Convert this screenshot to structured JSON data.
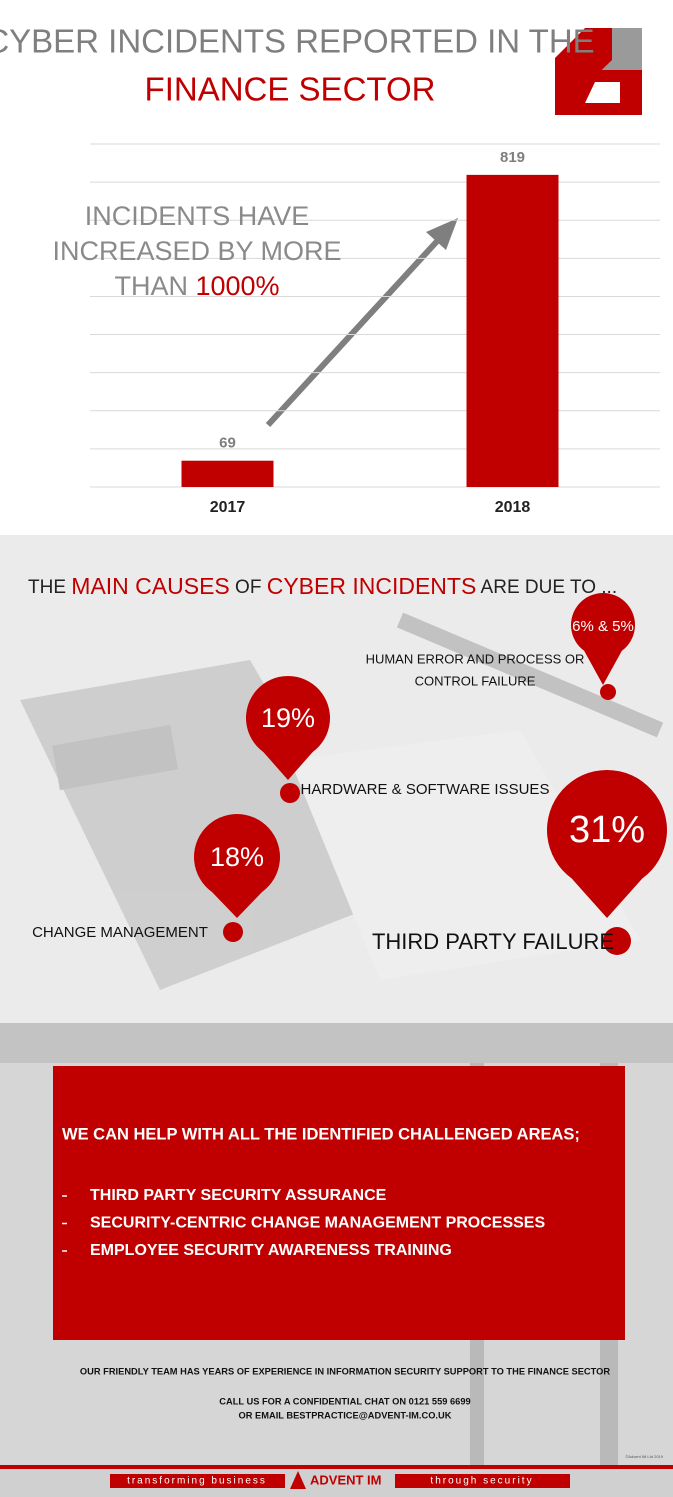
{
  "header": {
    "title_line1": "CYBER INCIDENTS REPORTED IN THE",
    "title_line2": "FINANCE SECTOR"
  },
  "chart_data": {
    "type": "bar",
    "categories": [
      "2017",
      "2018"
    ],
    "values": [
      69,
      819
    ],
    "color": "#c00000",
    "ylim": [
      0,
      900
    ],
    "yticks": [
      0,
      100,
      200,
      300,
      400,
      500,
      600,
      700,
      800,
      900
    ],
    "grid": true,
    "annotation_lines": [
      "INCIDENTS HAVE",
      "INCREASED BY MORE",
      "THAN"
    ],
    "annotation_highlight": "1000%"
  },
  "causes": {
    "title_parts": [
      {
        "text": "THE",
        "highlight": false
      },
      {
        "text": "MAIN CAUSES",
        "highlight": true
      },
      {
        "text": "OF",
        "highlight": false
      },
      {
        "text": "CYBER INCIDENTS",
        "highlight": true
      },
      {
        "text": "ARE DUE TO ...",
        "highlight": false
      }
    ],
    "items": [
      {
        "share": "6% & 5%",
        "label_lines": [
          "HUMAN ERROR AND PROCESS OR",
          "CONTROL FAILURE"
        ]
      },
      {
        "share": "19%",
        "label_lines": [
          "HARDWARE & SOFTWARE ISSUES"
        ]
      },
      {
        "share": "18%",
        "label_lines": [
          "CHANGE MANAGEMENT"
        ]
      },
      {
        "share": "31%",
        "label_lines": [
          "THIRD PARTY FAILURE"
        ]
      }
    ]
  },
  "help": {
    "heading": "WE CAN HELP WITH ALL THE IDENTIFIED CHALLENGED AREAS;",
    "items": [
      "THIRD PARTY SECURITY ASSURANCE",
      "SECURITY-CENTRIC CHANGE MANAGEMENT PROCESSES",
      "EMPLOYEE SECURITY AWARENESS TRAINING"
    ]
  },
  "contact": {
    "intro": "OUR FRIENDLY TEAM HAS YEARS OF EXPERIENCE IN INFORMATION SECURITY SUPPORT TO THE FINANCE SECTOR",
    "phone": "CALL US FOR A CONFIDENTIAL CHAT ON 0121 559 6699",
    "email": "OR EMAIL BESTPRACTICE@ADVENT-IM.CO.UK",
    "copyright": "©Advent IM Ltd 2019"
  },
  "footer": {
    "left": "transforming business",
    "brand": "ADVENT IM",
    "right": "through security"
  }
}
